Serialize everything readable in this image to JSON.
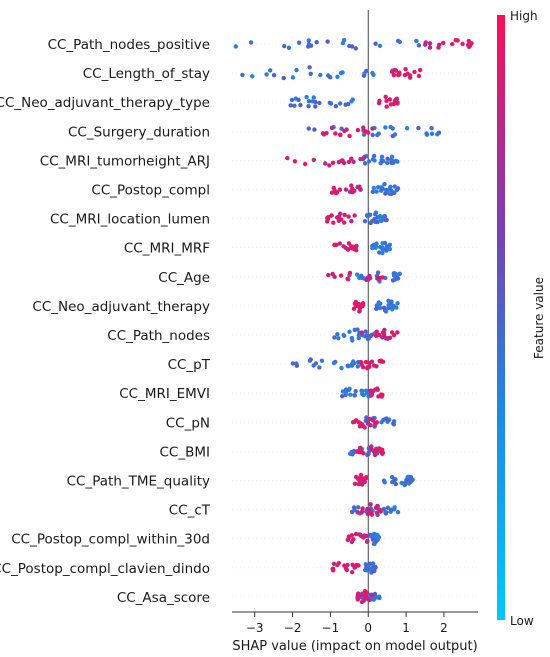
{
  "chart_data": {
    "type": "scatter",
    "title": "",
    "xlabel": "SHAP value (impact on model output)",
    "xlim": [
      -3.6,
      2.9
    ],
    "xticks": [
      -3,
      -2,
      -1,
      0,
      1,
      2
    ],
    "colorbar": {
      "label": "Feature value",
      "high_label": "High",
      "low_label": "Low",
      "low_color": "#1e88e5",
      "high_color": "#ff0d57",
      "mid_color": "#7a3fb4"
    },
    "features": [
      {
        "name": "CC_Path_nodes_positive",
        "low_range": [
          -3.5,
          1.7
        ],
        "high_range": [
          1.5,
          2.8
        ],
        "split": 1.6
      },
      {
        "name": "CC_Length_of_stay",
        "low_range": [
          -3.6,
          0.3
        ],
        "high_range": [
          0.6,
          1.4
        ],
        "split": 0.5
      },
      {
        "name": "CC_Neo_adjuvant_therapy_type",
        "low_range": [
          -2.3,
          -0.4
        ],
        "high_range": [
          0.2,
          0.8
        ],
        "split": 0.1
      },
      {
        "name": "CC_Surgery_duration",
        "low_range": [
          -1.8,
          2.0
        ],
        "high_range": [
          -1.2,
          0.4
        ],
        "split": 0.2
      },
      {
        "name": "CC_MRI_tumorheight_ARJ",
        "low_range": [
          -0.3,
          0.8
        ],
        "high_range": [
          -2.5,
          -0.1
        ],
        "split": -0.2
      },
      {
        "name": "CC_Postop_compl",
        "low_range": [
          0.1,
          0.8
        ],
        "high_range": [
          -1.0,
          -0.2
        ],
        "split": 0.0
      },
      {
        "name": "CC_MRI_location_lumen",
        "low_range": [
          -0.1,
          0.5
        ],
        "high_range": [
          -1.1,
          -0.3
        ],
        "split": -0.2
      },
      {
        "name": "CC_MRI_MRF",
        "low_range": [
          0.1,
          0.6
        ],
        "high_range": [
          -0.9,
          -0.3
        ],
        "split": 0.0
      },
      {
        "name": "CC_Age",
        "low_range": [
          -0.6,
          0.9
        ],
        "high_range": [
          -1.1,
          0.4
        ],
        "split": 0.0
      },
      {
        "name": "CC_Neo_adjuvant_therapy",
        "low_range": [
          0.2,
          0.8
        ],
        "high_range": [
          -0.4,
          -0.1
        ],
        "split": 0.0
      },
      {
        "name": "CC_Path_nodes",
        "low_range": [
          -1.0,
          0.2
        ],
        "high_range": [
          -0.2,
          0.8
        ],
        "split": 0.0
      },
      {
        "name": "CC_pT",
        "low_range": [
          -2.0,
          -0.2
        ],
        "high_range": [
          -0.2,
          0.4
        ],
        "split": -0.2
      },
      {
        "name": "CC_MRI_EMVI",
        "low_range": [
          -0.7,
          0.1
        ],
        "high_range": [
          0.0,
          0.4
        ],
        "split": 0.0
      },
      {
        "name": "CC_pN",
        "low_range": [
          -0.4,
          0.7
        ],
        "high_range": [
          -0.4,
          0.3
        ],
        "split": 0.0
      },
      {
        "name": "CC_BMI",
        "low_range": [
          -0.6,
          0.3
        ],
        "high_range": [
          -0.3,
          0.4
        ],
        "split": 0.0
      },
      {
        "name": "CC_Path_TME_quality",
        "low_range": [
          0.3,
          1.2
        ],
        "high_range": [
          -0.4,
          0.0
        ],
        "split": 0.1
      },
      {
        "name": "CC_cT",
        "low_range": [
          -0.5,
          0.8
        ],
        "high_range": [
          -0.3,
          0.4
        ],
        "split": 0.0
      },
      {
        "name": "CC_Postop_compl_within_30d",
        "low_range": [
          0.0,
          0.3
        ],
        "high_range": [
          -0.6,
          0.0
        ],
        "split": 0.0
      },
      {
        "name": "CC_Postop_compl_clavien_dindo",
        "low_range": [
          -0.1,
          0.2
        ],
        "high_range": [
          -1.1,
          -0.2
        ],
        "split": 0.0
      },
      {
        "name": "CC_Asa_score",
        "low_range": [
          -0.2,
          0.3
        ],
        "high_range": [
          -0.3,
          0.1
        ],
        "split": 0.0
      }
    ]
  }
}
